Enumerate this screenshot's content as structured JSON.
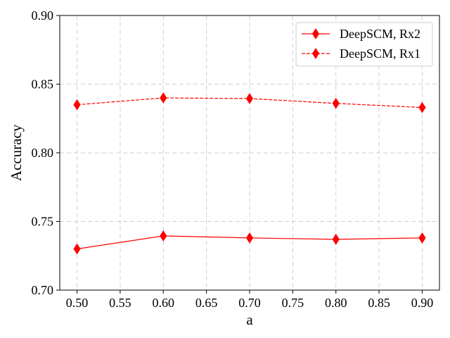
{
  "chart_data": {
    "type": "line",
    "title": "",
    "xlabel": "a",
    "ylabel": "Accuracy",
    "x": [
      0.5,
      0.6,
      0.7,
      0.8,
      0.9
    ],
    "xlim": [
      0.48,
      0.92
    ],
    "ylim": [
      0.7,
      0.9
    ],
    "xticks": [
      "0.50",
      "0.55",
      "0.60",
      "0.65",
      "0.70",
      "0.75",
      "0.80",
      "0.85",
      "0.90"
    ],
    "yticks": [
      "0.70",
      "0.75",
      "0.80",
      "0.85",
      "0.90"
    ],
    "grid": true,
    "legend_position": "top-right",
    "series": [
      {
        "name": "DeepSCM, Rx2",
        "values": [
          0.73,
          0.7395,
          0.738,
          0.737,
          0.738
        ],
        "color": "#ff0000",
        "linestyle": "solid",
        "marker": "diamond"
      },
      {
        "name": "DeepSCM, Rx1",
        "values": [
          0.835,
          0.84,
          0.8395,
          0.836,
          0.833
        ],
        "color": "#ff0000",
        "linestyle": "dashed",
        "marker": "diamond"
      }
    ]
  }
}
